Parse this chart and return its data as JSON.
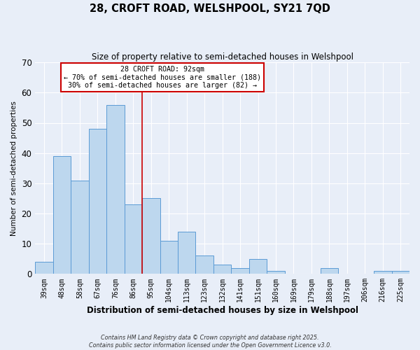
{
  "title": "28, CROFT ROAD, WELSHPOOL, SY21 7QD",
  "subtitle": "Size of property relative to semi-detached houses in Welshpool",
  "xlabel": "Distribution of semi-detached houses by size in Welshpool",
  "ylabel": "Number of semi-detached properties",
  "categories": [
    "39sqm",
    "48sqm",
    "58sqm",
    "67sqm",
    "76sqm",
    "86sqm",
    "95sqm",
    "104sqm",
    "113sqm",
    "123sqm",
    "132sqm",
    "141sqm",
    "151sqm",
    "160sqm",
    "169sqm",
    "179sqm",
    "188sqm",
    "197sqm",
    "206sqm",
    "216sqm",
    "225sqm"
  ],
  "values": [
    4,
    39,
    31,
    48,
    56,
    23,
    25,
    11,
    14,
    6,
    3,
    2,
    5,
    1,
    0,
    0,
    2,
    0,
    0,
    1,
    1
  ],
  "bar_color": "#bdd7ee",
  "bar_edge_color": "#5b9bd5",
  "background_color": "#e8eef8",
  "grid_color": "#ffffff",
  "ylim": [
    0,
    70
  ],
  "yticks": [
    0,
    10,
    20,
    30,
    40,
    50,
    60,
    70
  ],
  "annotation_title": "28 CROFT ROAD: 92sqm",
  "annotation_line1": "← 70% of semi-detached houses are smaller (188)",
  "annotation_line2": "30% of semi-detached houses are larger (82) →",
  "vline_color": "#cc0000",
  "vline_x": 5.5,
  "footnote1": "Contains HM Land Registry data © Crown copyright and database right 2025.",
  "footnote2": "Contains public sector information licensed under the Open Government Licence v3.0."
}
